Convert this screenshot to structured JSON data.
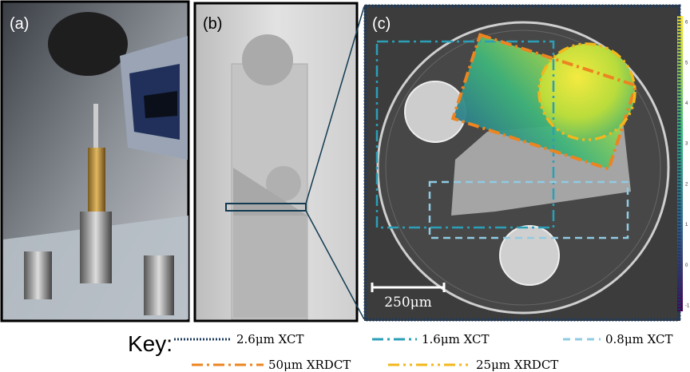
{
  "panels": [
    {
      "label": "(a)"
    },
    {
      "label": "(b)"
    },
    {
      "label": "(c)",
      "scale_bar": "250μm",
      "colorbar_ticks": [
        "6",
        "5",
        "4",
        "3",
        "2",
        "1",
        "0",
        "-1"
      ]
    }
  ],
  "key": {
    "title": "Key:",
    "entries": [
      {
        "label": "2.6μm XCT",
        "color": "#1c3a5e",
        "style": "dotted"
      },
      {
        "label": "1.6μm XCT",
        "color": "#2b9fb8",
        "style": "dashdot"
      },
      {
        "label": "0.8μm XCT",
        "color": "#8fcbe2",
        "style": "dashed"
      },
      {
        "label": "50μm XRDCT",
        "color": "#ec8420",
        "style": "dashdot"
      },
      {
        "label": "25μm XRDCT",
        "color": "#f2b71c",
        "style": "dashdotdot"
      }
    ]
  }
}
